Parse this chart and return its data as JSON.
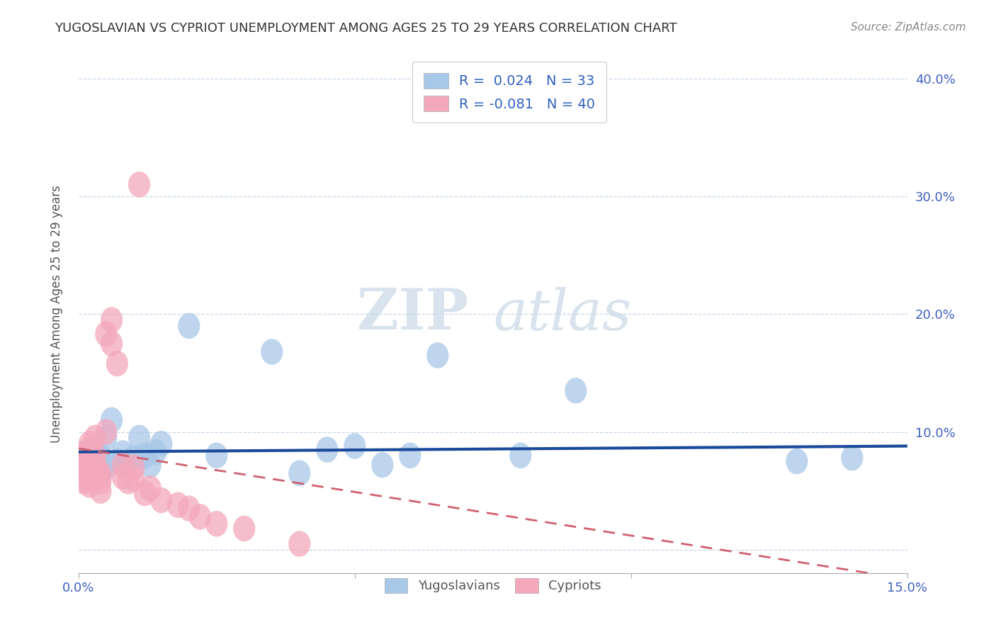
{
  "title": "YUGOSLAVIAN VS CYPRIOT UNEMPLOYMENT AMONG AGES 25 TO 29 YEARS CORRELATION CHART",
  "source": "Source: ZipAtlas.com",
  "ylabel": "Unemployment Among Ages 25 to 29 years",
  "xlim": [
    0.0,
    0.15
  ],
  "ylim": [
    -0.02,
    0.42
  ],
  "legend_R_yug": "0.024",
  "legend_N_yug": "33",
  "legend_R_cyp": "-0.081",
  "legend_N_cyp": "40",
  "yug_color": "#a8c8e8",
  "cyp_color": "#f4a8bc",
  "yug_line_color": "#1a4a9a",
  "cyp_line_color": "#d06070",
  "background_color": "#ffffff",
  "watermark_zip": "ZIP",
  "watermark_atlas": "atlas",
  "yugoslavians_x": [
    0.001,
    0.001,
    0.002,
    0.002,
    0.003,
    0.003,
    0.004,
    0.004,
    0.005,
    0.005,
    0.006,
    0.007,
    0.008,
    0.009,
    0.01,
    0.011,
    0.012,
    0.013,
    0.014,
    0.015,
    0.02,
    0.025,
    0.035,
    0.04,
    0.045,
    0.05,
    0.055,
    0.06,
    0.065,
    0.08,
    0.09,
    0.13,
    0.14
  ],
  "yugoslavians_y": [
    0.082,
    0.075,
    0.08,
    0.072,
    0.085,
    0.078,
    0.068,
    0.08,
    0.095,
    0.07,
    0.11,
    0.075,
    0.082,
    0.073,
    0.078,
    0.095,
    0.08,
    0.072,
    0.083,
    0.09,
    0.19,
    0.08,
    0.168,
    0.065,
    0.085,
    0.088,
    0.072,
    0.08,
    0.165,
    0.08,
    0.135,
    0.075,
    0.078
  ],
  "cypriots_x": [
    0.001,
    0.001,
    0.001,
    0.001,
    0.001,
    0.002,
    0.002,
    0.002,
    0.002,
    0.002,
    0.002,
    0.003,
    0.003,
    0.003,
    0.003,
    0.003,
    0.004,
    0.004,
    0.004,
    0.004,
    0.005,
    0.005,
    0.006,
    0.006,
    0.007,
    0.008,
    0.008,
    0.009,
    0.01,
    0.01,
    0.011,
    0.012,
    0.013,
    0.015,
    0.018,
    0.02,
    0.022,
    0.025,
    0.03,
    0.04
  ],
  "cypriots_y": [
    0.08,
    0.075,
    0.065,
    0.072,
    0.058,
    0.085,
    0.068,
    0.078,
    0.06,
    0.055,
    0.09,
    0.095,
    0.065,
    0.075,
    0.07,
    0.08,
    0.062,
    0.058,
    0.065,
    0.05,
    0.183,
    0.1,
    0.195,
    0.175,
    0.158,
    0.072,
    0.062,
    0.058,
    0.07,
    0.06,
    0.31,
    0.048,
    0.052,
    0.042,
    0.038,
    0.035,
    0.028,
    0.022,
    0.018,
    0.005
  ],
  "yug_trend_x": [
    0.0,
    0.15
  ],
  "yug_trend_y": [
    0.083,
    0.088
  ],
  "cyp_trend_x": [
    0.0,
    0.15
  ],
  "cyp_trend_y": [
    0.086,
    -0.025
  ]
}
